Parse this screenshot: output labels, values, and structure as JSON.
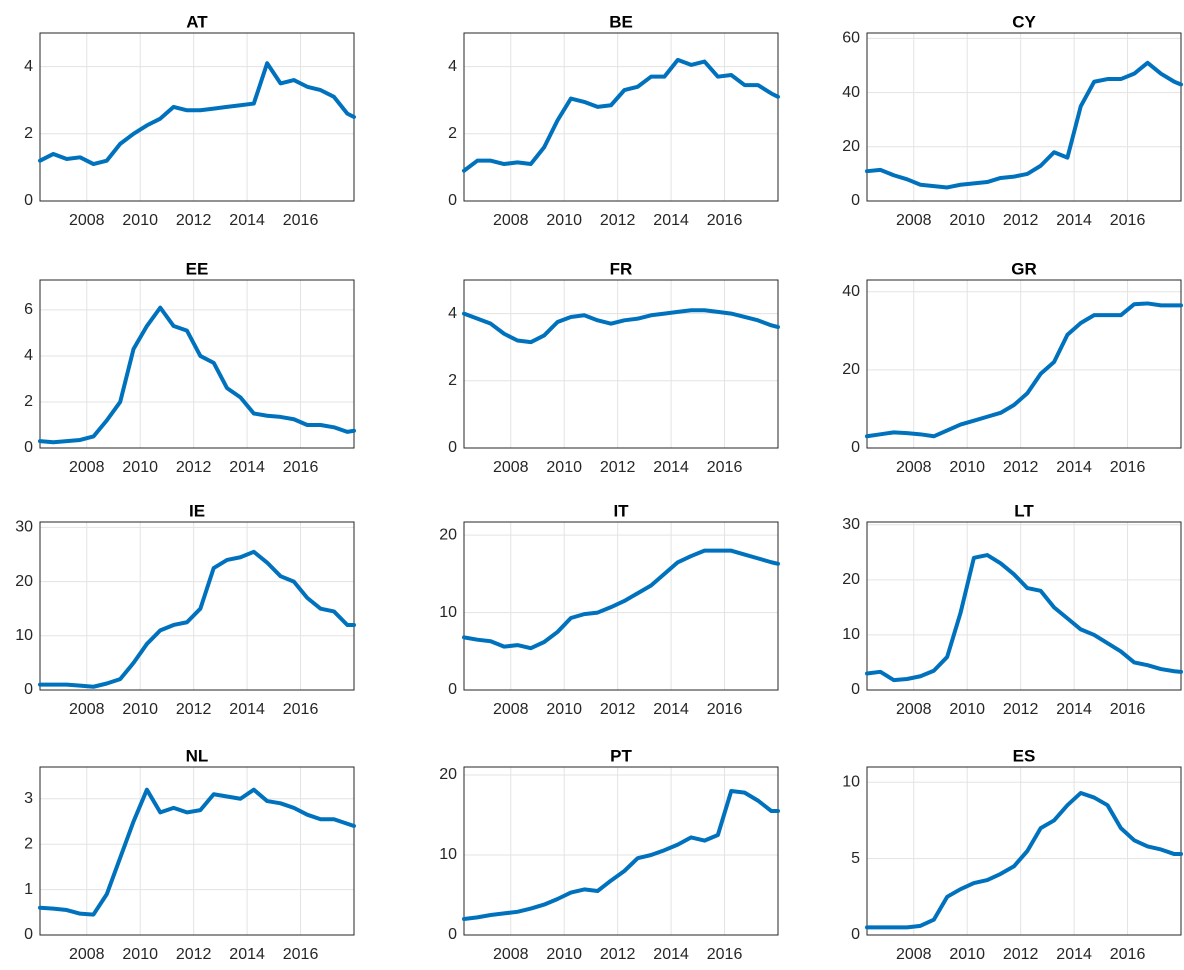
{
  "chart_data": [
    {
      "type": "line",
      "title": "AT",
      "color": "#0072bd",
      "grid": true,
      "xlim": [
        2006.25,
        2018
      ],
      "xticks": [
        2008,
        2010,
        2012,
        2014,
        2016
      ],
      "ylim": [
        0,
        5
      ],
      "yticks": [
        0,
        2,
        4
      ],
      "x": [
        2006.25,
        2006.75,
        2007.25,
        2007.75,
        2008.25,
        2008.75,
        2009.25,
        2009.75,
        2010.25,
        2010.75,
        2011.25,
        2011.75,
        2012.25,
        2012.75,
        2013.25,
        2013.75,
        2014.25,
        2014.75,
        2015.25,
        2015.75,
        2016.25,
        2016.75,
        2017.25,
        2017.75,
        2018
      ],
      "values": [
        1.2,
        1.4,
        1.25,
        1.3,
        1.1,
        1.2,
        1.7,
        2.0,
        2.25,
        2.45,
        2.8,
        2.7,
        2.7,
        2.75,
        2.8,
        2.85,
        2.9,
        4.1,
        3.5,
        3.6,
        3.4,
        3.3,
        3.1,
        2.6,
        2.5
      ]
    },
    {
      "type": "line",
      "title": "BE",
      "color": "#0072bd",
      "grid": true,
      "xlim": [
        2006.25,
        2018
      ],
      "xticks": [
        2008,
        2010,
        2012,
        2014,
        2016
      ],
      "ylim": [
        0,
        5
      ],
      "yticks": [
        0,
        2,
        4
      ],
      "x": [
        2006.25,
        2006.75,
        2007.25,
        2007.75,
        2008.25,
        2008.75,
        2009.25,
        2009.75,
        2010.25,
        2010.75,
        2011.25,
        2011.75,
        2012.25,
        2012.75,
        2013.25,
        2013.75,
        2014.25,
        2014.75,
        2015.25,
        2015.75,
        2016.25,
        2016.75,
        2017.25,
        2017.75,
        2018
      ],
      "values": [
        0.9,
        1.2,
        1.2,
        1.1,
        1.15,
        1.1,
        1.6,
        2.4,
        3.05,
        2.95,
        2.8,
        2.85,
        3.3,
        3.4,
        3.7,
        3.7,
        4.2,
        4.05,
        4.15,
        3.7,
        3.75,
        3.45,
        3.45,
        3.2,
        3.1
      ]
    },
    {
      "type": "line",
      "title": "CY",
      "color": "#0072bd",
      "grid": true,
      "xlim": [
        2006.25,
        2018
      ],
      "xticks": [
        2008,
        2010,
        2012,
        2014,
        2016
      ],
      "ylim": [
        0,
        62
      ],
      "yticks": [
        0,
        20,
        40,
        60
      ],
      "x": [
        2006.25,
        2006.75,
        2007.25,
        2007.75,
        2008.25,
        2008.75,
        2009.25,
        2009.75,
        2010.25,
        2010.75,
        2011.25,
        2011.75,
        2012.25,
        2012.75,
        2013.25,
        2013.75,
        2014.25,
        2014.75,
        2015.25,
        2015.75,
        2016.25,
        2016.75,
        2017.25,
        2017.75,
        2018
      ],
      "values": [
        11,
        11.5,
        9.5,
        8,
        6,
        5.5,
        5,
        6,
        6.5,
        7,
        8.5,
        9,
        10,
        13,
        18,
        16,
        35,
        44,
        45,
        45,
        47,
        51,
        47,
        44,
        43
      ]
    },
    {
      "type": "line",
      "title": "EE",
      "color": "#0072bd",
      "grid": true,
      "xlim": [
        2006.25,
        2018
      ],
      "xticks": [
        2008,
        2010,
        2012,
        2014,
        2016
      ],
      "ylim": [
        0,
        7.3
      ],
      "yticks": [
        0,
        2,
        4,
        6
      ],
      "x": [
        2006.25,
        2006.75,
        2007.25,
        2007.75,
        2008.25,
        2008.75,
        2009.25,
        2009.75,
        2010.25,
        2010.75,
        2011.25,
        2011.75,
        2012.25,
        2012.75,
        2013.25,
        2013.75,
        2014.25,
        2014.75,
        2015.25,
        2015.75,
        2016.25,
        2016.75,
        2017.25,
        2017.75,
        2018
      ],
      "values": [
        0.3,
        0.25,
        0.3,
        0.35,
        0.5,
        1.2,
        2.0,
        4.3,
        5.3,
        6.1,
        5.3,
        5.1,
        4.0,
        3.7,
        2.6,
        2.2,
        1.5,
        1.4,
        1.35,
        1.25,
        1.0,
        1.0,
        0.9,
        0.7,
        0.75
      ]
    },
    {
      "type": "line",
      "title": "FR",
      "color": "#0072bd",
      "grid": true,
      "xlim": [
        2006.25,
        2018
      ],
      "xticks": [
        2008,
        2010,
        2012,
        2014,
        2016
      ],
      "ylim": [
        0,
        5
      ],
      "yticks": [
        0,
        2,
        4
      ],
      "x": [
        2006.25,
        2006.75,
        2007.25,
        2007.75,
        2008.25,
        2008.75,
        2009.25,
        2009.75,
        2010.25,
        2010.75,
        2011.25,
        2011.75,
        2012.25,
        2012.75,
        2013.25,
        2013.75,
        2014.25,
        2014.75,
        2015.25,
        2015.75,
        2016.25,
        2016.75,
        2017.25,
        2017.75,
        2018
      ],
      "values": [
        4.0,
        3.85,
        3.7,
        3.4,
        3.2,
        3.15,
        3.35,
        3.75,
        3.9,
        3.95,
        3.8,
        3.7,
        3.8,
        3.85,
        3.95,
        4.0,
        4.05,
        4.1,
        4.1,
        4.05,
        4.0,
        3.9,
        3.8,
        3.65,
        3.6
      ]
    },
    {
      "type": "line",
      "title": "GR",
      "color": "#0072bd",
      "grid": true,
      "xlim": [
        2006.25,
        2018
      ],
      "xticks": [
        2008,
        2010,
        2012,
        2014,
        2016
      ],
      "ylim": [
        0,
        43
      ],
      "yticks": [
        0,
        20,
        40
      ],
      "x": [
        2006.25,
        2006.75,
        2007.25,
        2007.75,
        2008.25,
        2008.75,
        2009.25,
        2009.75,
        2010.25,
        2010.75,
        2011.25,
        2011.75,
        2012.25,
        2012.75,
        2013.25,
        2013.75,
        2014.25,
        2014.75,
        2015.25,
        2015.75,
        2016.25,
        2016.75,
        2017.25,
        2017.75,
        2018
      ],
      "values": [
        3,
        3.5,
        4,
        3.8,
        3.5,
        3,
        4.5,
        6,
        7,
        8,
        9,
        11,
        14,
        19,
        22,
        29,
        32,
        34,
        34,
        34,
        36.8,
        37,
        36.5,
        36.5,
        36.5
      ]
    },
    {
      "type": "line",
      "title": "IE",
      "color": "#0072bd",
      "grid": true,
      "xlim": [
        2006.25,
        2018
      ],
      "xticks": [
        2008,
        2010,
        2012,
        2014,
        2016
      ],
      "ylim": [
        0,
        31
      ],
      "yticks": [
        0,
        10,
        20,
        30
      ],
      "x": [
        2006.25,
        2006.75,
        2007.25,
        2007.75,
        2008.25,
        2008.75,
        2009.25,
        2009.75,
        2010.25,
        2010.75,
        2011.25,
        2011.75,
        2012.25,
        2012.75,
        2013.25,
        2013.75,
        2014.25,
        2014.75,
        2015.25,
        2015.75,
        2016.25,
        2016.75,
        2017.25,
        2017.75,
        2018
      ],
      "values": [
        1,
        1,
        1,
        0.8,
        0.6,
        1.2,
        2,
        5,
        8.5,
        11,
        12,
        12.5,
        15,
        22.5,
        24,
        24.5,
        25.5,
        23.5,
        21,
        20,
        17,
        15,
        14.5,
        12,
        12
      ]
    },
    {
      "type": "line",
      "title": "IT",
      "color": "#0072bd",
      "grid": true,
      "xlim": [
        2006.25,
        2018
      ],
      "xticks": [
        2008,
        2010,
        2012,
        2014,
        2016
      ],
      "ylim": [
        0,
        21.7
      ],
      "yticks": [
        0,
        10,
        20
      ],
      "x": [
        2006.25,
        2006.75,
        2007.25,
        2007.75,
        2008.25,
        2008.75,
        2009.25,
        2009.75,
        2010.25,
        2010.75,
        2011.25,
        2011.75,
        2012.25,
        2012.75,
        2013.25,
        2013.75,
        2014.25,
        2014.75,
        2015.25,
        2015.75,
        2016.25,
        2016.75,
        2017.25,
        2017.75,
        2018
      ],
      "values": [
        6.8,
        6.5,
        6.3,
        5.6,
        5.8,
        5.4,
        6.2,
        7.5,
        9.3,
        9.8,
        10,
        10.7,
        11.5,
        12.5,
        13.5,
        15,
        16.5,
        17.3,
        18,
        18,
        18,
        17.5,
        17,
        16.5,
        16.3
      ]
    },
    {
      "type": "line",
      "title": "LT",
      "color": "#0072bd",
      "grid": true,
      "xlim": [
        2006.25,
        2018
      ],
      "xticks": [
        2008,
        2010,
        2012,
        2014,
        2016
      ],
      "ylim": [
        0,
        30.5
      ],
      "yticks": [
        0,
        10,
        20,
        30
      ],
      "x": [
        2006.25,
        2006.75,
        2007.25,
        2007.75,
        2008.25,
        2008.75,
        2009.25,
        2009.75,
        2010.25,
        2010.75,
        2011.25,
        2011.75,
        2012.25,
        2012.75,
        2013.25,
        2013.75,
        2014.25,
        2014.75,
        2015.25,
        2015.75,
        2016.25,
        2016.75,
        2017.25,
        2017.75,
        2018
      ],
      "values": [
        3,
        3.3,
        1.8,
        2,
        2.5,
        3.5,
        6,
        14,
        24,
        24.5,
        23,
        21,
        18.5,
        18,
        15,
        13,
        11,
        10,
        8.5,
        7,
        5,
        4.5,
        3.8,
        3.4,
        3.3
      ]
    },
    {
      "type": "line",
      "title": "NL",
      "color": "#0072bd",
      "grid": true,
      "xlim": [
        2006.25,
        2018
      ],
      "xticks": [
        2008,
        2010,
        2012,
        2014,
        2016
      ],
      "ylim": [
        0,
        3.7
      ],
      "yticks": [
        0,
        1,
        2,
        3
      ],
      "x": [
        2006.25,
        2006.75,
        2007.25,
        2007.75,
        2008.25,
        2008.75,
        2009.25,
        2009.75,
        2010.25,
        2010.75,
        2011.25,
        2011.75,
        2012.25,
        2012.75,
        2013.25,
        2013.75,
        2014.25,
        2014.75,
        2015.25,
        2015.75,
        2016.25,
        2016.75,
        2017.25,
        2017.75,
        2018
      ],
      "values": [
        0.6,
        0.58,
        0.55,
        0.47,
        0.45,
        0.9,
        1.7,
        2.5,
        3.2,
        2.7,
        2.8,
        2.7,
        2.75,
        3.1,
        3.05,
        3.0,
        3.2,
        2.95,
        2.9,
        2.8,
        2.65,
        2.55,
        2.55,
        2.45,
        2.4
      ]
    },
    {
      "type": "line",
      "title": "PT",
      "color": "#0072bd",
      "grid": true,
      "xlim": [
        2006.25,
        2018
      ],
      "xticks": [
        2008,
        2010,
        2012,
        2014,
        2016
      ],
      "ylim": [
        0,
        21
      ],
      "yticks": [
        0,
        10,
        20
      ],
      "x": [
        2006.25,
        2006.75,
        2007.25,
        2007.75,
        2008.25,
        2008.75,
        2009.25,
        2009.75,
        2010.25,
        2010.75,
        2011.25,
        2011.75,
        2012.25,
        2012.75,
        2013.25,
        2013.75,
        2014.25,
        2014.75,
        2015.25,
        2015.75,
        2016.25,
        2016.75,
        2017.25,
        2017.75,
        2018
      ],
      "values": [
        2,
        2.2,
        2.5,
        2.7,
        2.9,
        3.3,
        3.8,
        4.5,
        5.3,
        5.7,
        5.5,
        6.8,
        8,
        9.6,
        10,
        10.6,
        11.3,
        12.2,
        11.8,
        12.5,
        18,
        17.8,
        16.8,
        15.5,
        15.5
      ]
    },
    {
      "type": "line",
      "title": "ES",
      "color": "#0072bd",
      "grid": true,
      "xlim": [
        2006.25,
        2018
      ],
      "xticks": [
        2008,
        2010,
        2012,
        2014,
        2016
      ],
      "ylim": [
        0,
        11
      ],
      "yticks": [
        0,
        5,
        10
      ],
      "x": [
        2006.25,
        2006.75,
        2007.25,
        2007.75,
        2008.25,
        2008.75,
        2009.25,
        2009.75,
        2010.25,
        2010.75,
        2011.25,
        2011.75,
        2012.25,
        2012.75,
        2013.25,
        2013.75,
        2014.25,
        2014.75,
        2015.25,
        2015.75,
        2016.25,
        2016.75,
        2017.25,
        2017.75,
        2018
      ],
      "values": [
        0.5,
        0.5,
        0.5,
        0.5,
        0.6,
        1.0,
        2.5,
        3.0,
        3.4,
        3.6,
        4.0,
        4.5,
        5.5,
        7.0,
        7.5,
        8.5,
        9.3,
        9.0,
        8.5,
        7.0,
        6.2,
        5.8,
        5.6,
        5.3,
        5.3
      ]
    }
  ]
}
